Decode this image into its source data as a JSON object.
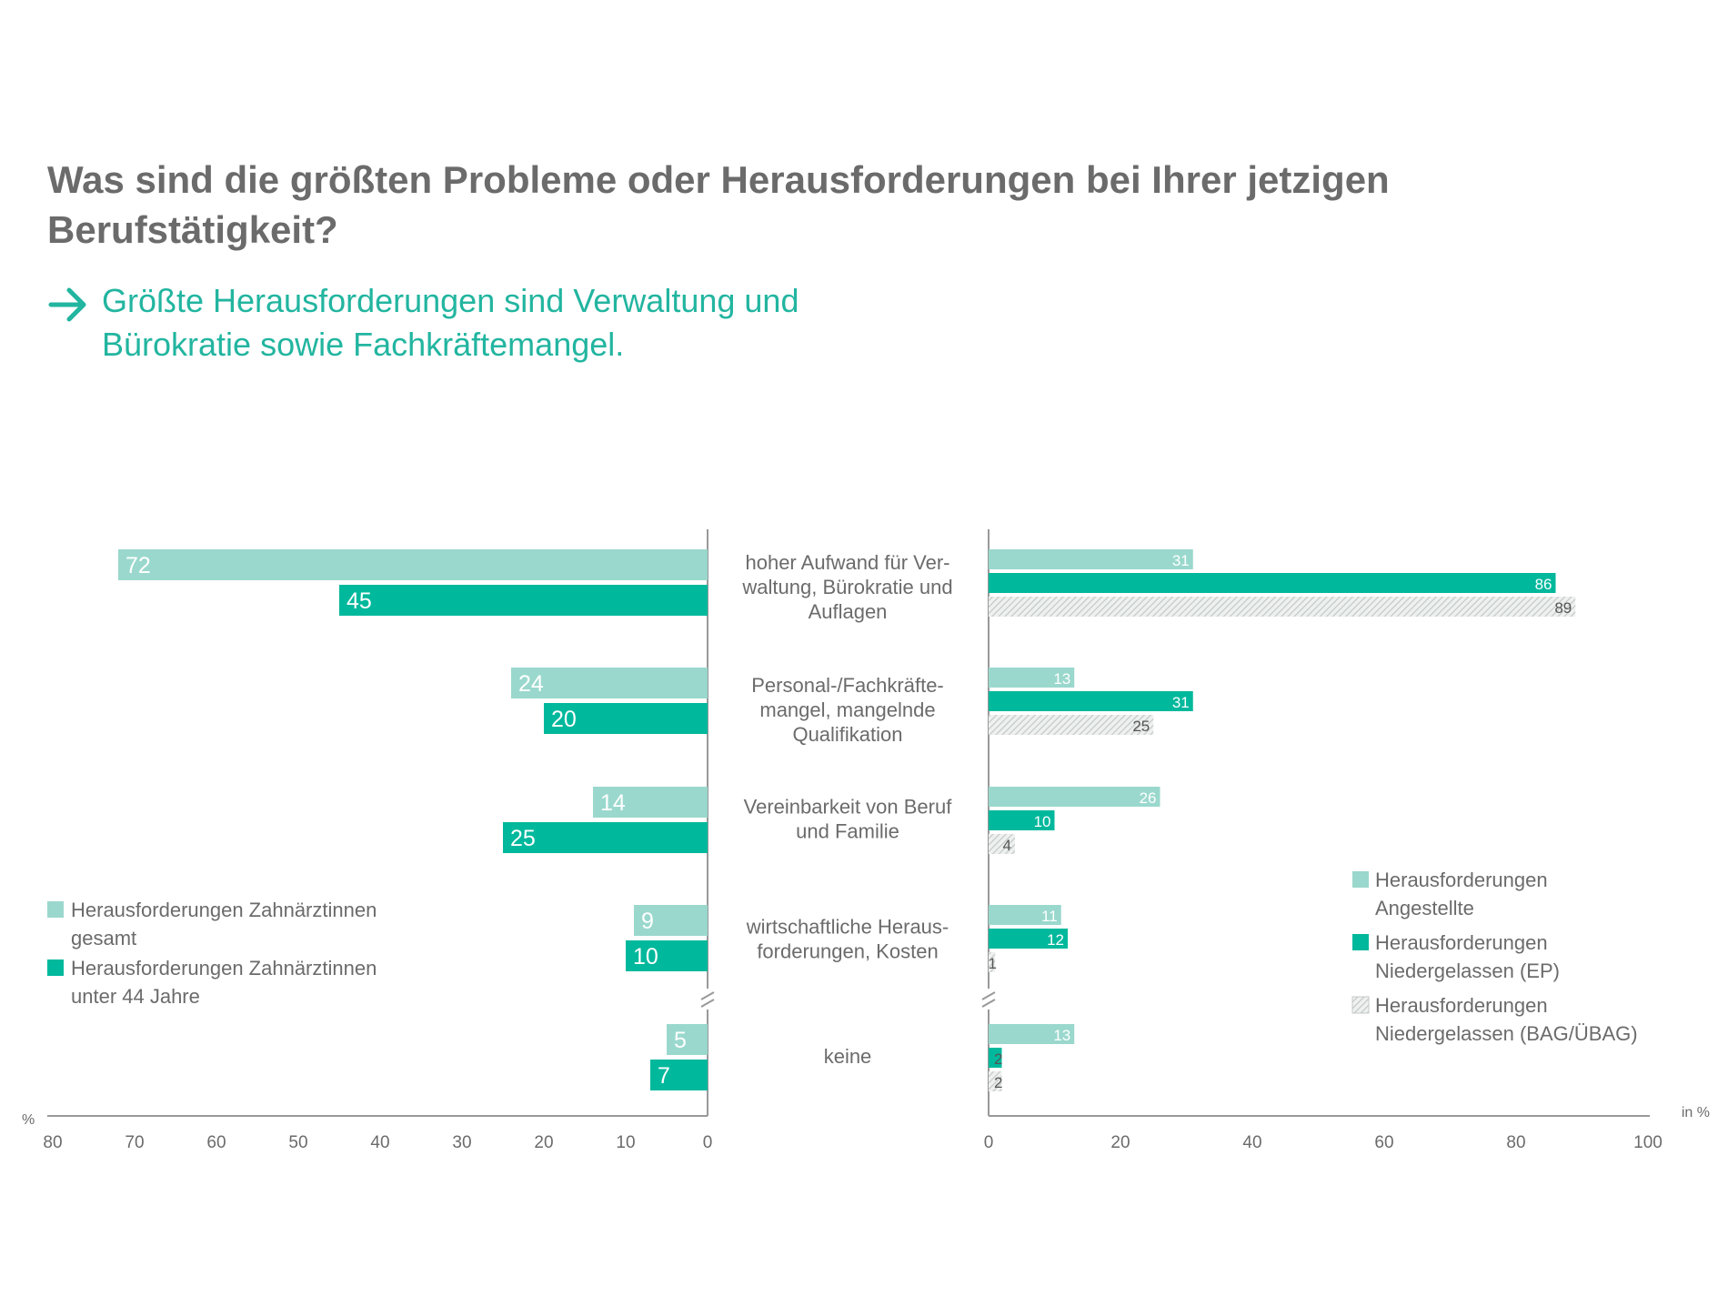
{
  "title": "Was sind die größten Probleme oder Herausforderungen bei Ihrer jetzigen Berufstätigkeit?",
  "subtitle": "Größte Herausforderungen sind Verwaltung und Bürokratie sowie Fachkräftemangel.",
  "colors": {
    "light": "#9ad8cd",
    "dark": "#00b89c",
    "pattern": "#d5d9d8",
    "text": "#6b6b6b",
    "axis": "#999999",
    "accent": "#22b5a0"
  },
  "chart_data": [
    {
      "type": "bar",
      "orientation": "horizontal",
      "direction": "right-to-left",
      "categories": [
        "hoher Aufwand für Verwaltung, Bürokratie und Auflagen",
        "Personal-/Fachkräftemangel, mangelnde Qualifikation",
        "Vereinbarkeit von Beruf und Familie",
        "wirtschaftliche Herausforderungen, Kosten",
        "keine"
      ],
      "series": [
        {
          "name": "Herausforderungen Zahnärztinnen gesamt",
          "values": [
            72,
            24,
            14,
            9,
            5
          ]
        },
        {
          "name": "Herausforderungen Zahnärztinnen unter 44 Jahre",
          "values": [
            45,
            20,
            25,
            10,
            7
          ]
        }
      ],
      "legend": [
        {
          "line1": "Herausforderungen Zahnärztinnen",
          "line2": "gesamt"
        },
        {
          "line1": "Herausforderungen Zahnärztinnen",
          "line2": "unter 44 Jahre"
        }
      ],
      "xlim": [
        0,
        80
      ],
      "xticks": [
        "80",
        "70",
        "60",
        "50",
        "40",
        "30",
        "20",
        "10",
        "0"
      ],
      "xlabel": "%",
      "axis_break": true
    },
    {
      "type": "bar",
      "orientation": "horizontal",
      "series": [
        {
          "name": "Herausforderungen Angestellte",
          "values": [
            31,
            13,
            26,
            11,
            13
          ]
        },
        {
          "name": "Herausforderungen Niedergelassen (EP)",
          "values": [
            86,
            31,
            10,
            12,
            2
          ]
        },
        {
          "name": "Herausforderungen Niedergelassen (BAG/ÜBAG)",
          "values": [
            89,
            25,
            4,
            1,
            2
          ]
        }
      ],
      "legend": [
        {
          "line1": "Herausforderungen",
          "line2": "Angestellte"
        },
        {
          "line1": "Herausforderungen",
          "line2": "Niedergelassen (EP)"
        },
        {
          "line1": "Herausforderungen",
          "line2": "Niedergelassen (BAG/ÜBAG)"
        }
      ],
      "xlim": [
        0,
        100
      ],
      "xticks": [
        "0",
        "20",
        "40",
        "60",
        "80",
        "100"
      ],
      "xlabel": "in %",
      "axis_break": true
    }
  ],
  "category_lines": [
    [
      "hoher Aufwand für Ver-",
      "waltung, Bürokratie und",
      "Auflagen"
    ],
    [
      "Personal-/Fachkräfte-",
      "mangel, mangelnde",
      "Qualifikation"
    ],
    [
      "Vereinbarkeit von Beruf",
      "und Familie"
    ],
    [
      "wirtschaftliche Heraus-",
      "forderungen, Kosten"
    ],
    [
      "keine"
    ]
  ]
}
